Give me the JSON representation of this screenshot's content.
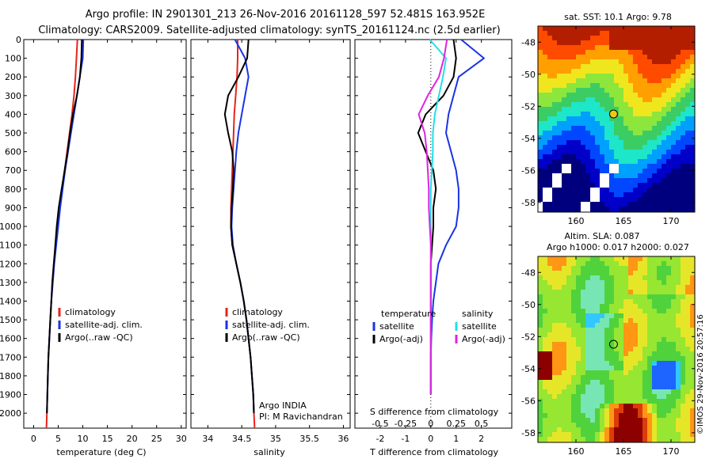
{
  "header": {
    "line1": "Argo profile: IN 2901301_213 26-Nov-2016 20161128_597 52.481S 163.952E",
    "line2": "Climatology: CARS2009. Satellite-adjusted climatology: synTS_20161124.nc (2.5d earlier)"
  },
  "credit": "©IMOS 29-Nov-2016 20:57:16",
  "colors": {
    "climatology": "#e8231c",
    "satellite": "#1833e6",
    "argo": "#000000",
    "satellite_s": "#22e0e8",
    "argo_s": "#e022e0"
  },
  "chart_data": [
    {
      "type": "line",
      "panel": "temperature",
      "xlabel": "temperature (deg C)",
      "ylabel": "",
      "xlim": [
        -2,
        31
      ],
      "ylim": [
        2080,
        0
      ],
      "xticks": [
        "0",
        "5",
        "10",
        "15",
        "20",
        "25",
        "30"
      ],
      "yticks": [
        "0",
        "100",
        "200",
        "300",
        "400",
        "500",
        "600",
        "700",
        "800",
        "900",
        "1000",
        "1100",
        "1200",
        "1300",
        "1400",
        "1500",
        "1600",
        "1700",
        "1800",
        "1900",
        "2000"
      ],
      "legend_position": "lower-center",
      "legend": [
        "climatology",
        "satellite-adj. clim.",
        "Argo(..raw -QC)"
      ],
      "series": [
        {
          "name": "climatology",
          "color": "climatology",
          "x": [
            8.9,
            8.7,
            8.5,
            8.2,
            7.8,
            7.3,
            6.8,
            6.3,
            5.8,
            5.3,
            4.9,
            4.5,
            4.1,
            3.8,
            3.6,
            3.4,
            3.2,
            3.0,
            2.9,
            2.8,
            2.7,
            2.6
          ],
          "y": [
            0,
            100,
            200,
            300,
            400,
            500,
            600,
            700,
            800,
            900,
            1000,
            1100,
            1200,
            1300,
            1400,
            1500,
            1600,
            1700,
            1800,
            1900,
            2000,
            2080
          ]
        },
        {
          "name": "satellite-adj. clim.",
          "color": "satellite",
          "x": [
            10.1,
            10.0,
            9.4,
            8.8,
            8.2,
            7.6,
            7.0,
            6.4,
            5.9,
            5.4,
            5.0,
            4.6,
            4.2,
            3.9,
            3.6,
            3.4,
            3.2,
            3.0,
            2.9,
            2.8,
            2.7
          ],
          "y": [
            0,
            100,
            200,
            300,
            400,
            500,
            600,
            700,
            800,
            900,
            1000,
            1100,
            1200,
            1300,
            1400,
            1500,
            1600,
            1700,
            1800,
            1900,
            2000
          ]
        },
        {
          "name": "Argo(..raw -QC)",
          "color": "argo",
          "x": [
            9.8,
            9.7,
            9.4,
            8.8,
            8.0,
            7.4,
            6.9,
            6.3,
            5.7,
            5.1,
            4.7,
            4.4,
            4.1,
            3.8,
            3.6,
            3.4,
            3.2,
            3.0,
            2.9,
            2.8,
            2.7
          ],
          "y": [
            0,
            100,
            200,
            300,
            400,
            500,
            600,
            700,
            800,
            900,
            1000,
            1100,
            1200,
            1300,
            1400,
            1500,
            1600,
            1700,
            1800,
            1900,
            2000
          ]
        }
      ]
    },
    {
      "type": "line",
      "panel": "salinity",
      "xlabel": "salinity",
      "ylabel": "",
      "xlim": [
        33.75,
        36.1
      ],
      "ylim": [
        2080,
        0
      ],
      "xticks": [
        "34",
        "34.5",
        "35",
        "35.5",
        "36"
      ],
      "yticks": [],
      "legend_position": "lower-center",
      "legend": [
        "climatology",
        "satellite-adj. clim.",
        "Argo(..raw -QC)"
      ],
      "annotation": [
        "Argo INDIA",
        "PI: M Ravichandran"
      ],
      "series": [
        {
          "name": "climatology",
          "color": "climatology",
          "x": [
            34.44,
            34.44,
            34.43,
            34.41,
            34.39,
            34.38,
            34.37,
            34.36,
            34.35,
            34.34,
            34.34,
            34.36,
            34.42,
            34.48,
            34.53,
            34.57,
            34.6,
            34.63,
            34.65,
            34.67,
            34.68,
            34.69
          ],
          "y": [
            0,
            100,
            200,
            300,
            400,
            500,
            600,
            700,
            800,
            900,
            1000,
            1100,
            1200,
            1300,
            1400,
            1500,
            1600,
            1700,
            1800,
            1900,
            2000,
            2080
          ]
        },
        {
          "name": "satellite-adj. clim.",
          "color": "satellite",
          "x": [
            34.4,
            34.55,
            34.6,
            34.55,
            34.5,
            34.45,
            34.42,
            34.4,
            34.38,
            34.36,
            34.35,
            34.37,
            34.42,
            34.48,
            34.53,
            34.57,
            34.6,
            34.63,
            34.65,
            34.67,
            34.68
          ],
          "y": [
            0,
            100,
            200,
            300,
            400,
            500,
            600,
            700,
            800,
            900,
            1000,
            1100,
            1200,
            1300,
            1400,
            1500,
            1600,
            1700,
            1800,
            1900,
            2000
          ]
        },
        {
          "name": "Argo(..raw -QC)",
          "color": "argo",
          "x": [
            34.6,
            34.58,
            34.45,
            34.3,
            34.25,
            34.3,
            34.36,
            34.38,
            34.37,
            34.35,
            34.34,
            34.36,
            34.42,
            34.48,
            34.53,
            34.57,
            34.6,
            34.63,
            34.65,
            34.67,
            34.68
          ],
          "y": [
            0,
            100,
            200,
            300,
            400,
            500,
            600,
            700,
            800,
            900,
            1000,
            1100,
            1200,
            1300,
            1400,
            1500,
            1600,
            1700,
            1800,
            1900,
            2000
          ]
        }
      ]
    },
    {
      "type": "line",
      "panel": "difference",
      "xlabel": "T difference from climatology",
      "x2label": "S difference from climatology",
      "xlim": [
        -3,
        3.2
      ],
      "ylim": [
        2080,
        0
      ],
      "xticks": [
        "-2",
        "-1",
        "0",
        "1",
        "2"
      ],
      "x2ticks": [
        "-0.5",
        "-0.25",
        "0",
        "0.25",
        "0.5"
      ],
      "yticks": [],
      "legend_position": "lower-center",
      "legend_headers": [
        "temperature",
        "salinity"
      ],
      "legend": [
        "satellite",
        "Argo(-adj)",
        "satellite",
        "Argo(-adj)"
      ],
      "series": [
        {
          "name": "satellite",
          "group": "temperature",
          "color": "satellite",
          "x": [
            1.2,
            2.1,
            1.1,
            0.9,
            0.7,
            0.6,
            0.8,
            1.0,
            1.1,
            1.1,
            1.0,
            0.6,
            0.3,
            0.2,
            0.1,
            0.05,
            0.02,
            0.0,
            0.0,
            0.0
          ],
          "y": [
            0,
            100,
            200,
            300,
            400,
            500,
            600,
            700,
            800,
            900,
            1000,
            1100,
            1200,
            1300,
            1400,
            1500,
            1600,
            1700,
            1800,
            1900
          ]
        },
        {
          "name": "Argo(-adj)",
          "group": "temperature",
          "color": "argo",
          "x": [
            0.9,
            1.0,
            0.9,
            0.5,
            -0.2,
            -0.5,
            -0.2,
            0.1,
            0.2,
            0.1,
            0.1,
            0.05,
            0.0,
            0.0,
            0.0,
            0.0,
            0.0,
            0.0,
            0.0,
            0.0
          ],
          "y": [
            0,
            100,
            200,
            300,
            400,
            500,
            600,
            700,
            800,
            900,
            1000,
            1100,
            1200,
            1300,
            1400,
            1500,
            1600,
            1700,
            1800,
            1900
          ]
        },
        {
          "name": "satellite",
          "group": "salinity",
          "color": "satellite_s",
          "x": [
            -0.01,
            0.15,
            0.12,
            0.08,
            0.04,
            0.02,
            0.02,
            0.01,
            0.0,
            0.0,
            0.0,
            0.0,
            0.0,
            0.0,
            0.0,
            0.0,
            0.0,
            0.0,
            0.0,
            0.0
          ],
          "y": [
            0,
            100,
            200,
            300,
            400,
            500,
            600,
            700,
            800,
            900,
            1000,
            1100,
            1200,
            1300,
            1400,
            1500,
            1600,
            1700,
            1800,
            1900
          ]
        },
        {
          "name": "Argo(-adj)",
          "group": "salinity",
          "color": "argo_s",
          "x": [
            0.16,
            0.13,
            0.08,
            -0.03,
            -0.12,
            -0.06,
            -0.04,
            -0.03,
            -0.02,
            -0.02,
            -0.01,
            0.0,
            0.0,
            0.0,
            0.0,
            0.0,
            0.0,
            0.0,
            0.0,
            0.0
          ],
          "y": [
            0,
            100,
            200,
            300,
            400,
            500,
            600,
            700,
            800,
            900,
            1000,
            1100,
            1200,
            1300,
            1400,
            1500,
            1600,
            1700,
            1800,
            1900
          ]
        }
      ]
    },
    {
      "type": "heatmap",
      "panel": "sst-map",
      "title": "sat. SST: 10.1  Argo: 9.78",
      "xlim": [
        156,
        172.5
      ],
      "ylim": [
        -58.6,
        -47
      ],
      "xticks": [
        "160",
        "165",
        "170"
      ],
      "yticks": [
        "-48",
        "-50",
        "-52",
        "-54",
        "-56",
        "-58"
      ],
      "marker": {
        "lon": 163.952,
        "lat": -52.481
      }
    },
    {
      "type": "heatmap",
      "panel": "sla-map",
      "title_lines": [
        "Altim. SLA: 0.087",
        "Argo h1000: 0.017 h2000: 0.027"
      ],
      "xlim": [
        156,
        172.5
      ],
      "ylim": [
        -58.6,
        -47
      ],
      "xticks": [
        "160",
        "165",
        "170"
      ],
      "yticks": [
        "-48",
        "-50",
        "-52",
        "-54",
        "-56",
        "-58"
      ],
      "marker": {
        "lon": 163.952,
        "lat": -52.481
      }
    }
  ]
}
